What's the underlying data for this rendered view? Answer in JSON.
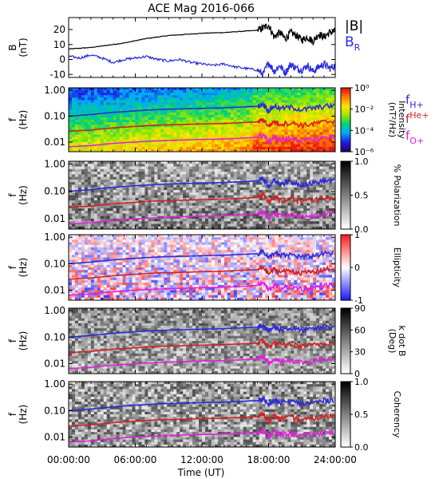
{
  "chart_data": {
    "type": "line",
    "title": "ACE Mag 2016-066",
    "xlabel": "Time (UT)",
    "x_tick_labels": [
      "00:00:00",
      "06:00:00",
      "12:00:00",
      "18:00:00",
      "24:00:00"
    ],
    "x_tick_hours": [
      0,
      6,
      12,
      18,
      24
    ],
    "x_range_hours": [
      0,
      24
    ],
    "panels": [
      {
        "id": "b",
        "type": "line",
        "ylabel": "B (nT)",
        "ylabel_parts": [
          "B",
          "(nT)"
        ],
        "ylim": [
          -12,
          28
        ],
        "y_ticks": [
          20,
          10,
          0,
          -10
        ],
        "y_tick_labels": [
          "20",
          "10",
          "0",
          "-10"
        ],
        "legend": [
          {
            "text": "|B|",
            "color": "#000000"
          },
          {
            "text": "B",
            "sub": "R",
            "color": "#2b2bdc"
          }
        ],
        "series": [
          {
            "name": "|B|",
            "color": "#000000",
            "x": [
              0,
              1,
              2,
              3,
              4,
              5,
              6,
              7,
              8,
              9,
              10,
              11,
              12,
              13,
              14,
              15,
              16,
              17,
              17.5,
              18,
              18.5,
              19,
              19.5,
              20,
              20.5,
              21,
              21.5,
              22,
              22.5,
              23,
              23.5,
              24
            ],
            "y": [
              7,
              7.5,
              8,
              9,
              10,
              11,
              12.5,
              14,
              15,
              16,
              16.5,
              17,
              17.5,
              17.8,
              18,
              18.5,
              19,
              19.5,
              21,
              23,
              15,
              18,
              14,
              18,
              16,
              13,
              15,
              12,
              17,
              15,
              18,
              19
            ]
          },
          {
            "name": "B_R",
            "color": "#2b2bdc",
            "x": [
              0,
              1,
              2,
              3,
              4,
              5,
              6,
              7,
              8,
              9,
              10,
              11,
              12,
              13,
              14,
              15,
              16,
              17,
              17.5,
              18,
              18.5,
              19,
              19.5,
              20,
              20.5,
              21,
              21.5,
              22,
              22.5,
              23,
              23.5,
              24
            ],
            "y": [
              2,
              1,
              3,
              1,
              -2,
              0,
              1,
              2,
              0,
              -1,
              0,
              -2,
              -3,
              -4,
              -3,
              -5,
              -6,
              -7,
              -10,
              -2,
              -8,
              -4,
              -9,
              -3,
              -6,
              -7,
              -4,
              -8,
              -5,
              -3,
              -6,
              -4
            ]
          }
        ]
      },
      {
        "id": "intensity",
        "type": "heatmap",
        "ylabel": "f (Hz)",
        "ylabel_parts": [
          "f",
          "(Hz)"
        ],
        "y_scale": "log",
        "y_ticks": [
          1.0,
          0.1,
          0.01
        ],
        "y_tick_labels": [
          "1.00",
          "0.10",
          "0.01"
        ],
        "colorbar": {
          "label": "Intensity (nT²/Hz)",
          "label_parts": [
            "Intensity",
            "(nT²/Hz)"
          ],
          "ticks": [
            0,
            -2,
            -4,
            -6
          ],
          "tick_labels": [
            "10⁰",
            "10⁻²",
            "10⁻⁴",
            "10⁻⁶"
          ],
          "colormap": "rainbow"
        },
        "overlay_legend": [
          {
            "text": "f",
            "sub": "H+",
            "color": "#2b2bdc"
          },
          {
            "text": "f",
            "sup": "He+",
            "color": "#d42020"
          },
          {
            "text": "f",
            "sub": "O+",
            "color": "#e020e0"
          }
        ]
      },
      {
        "id": "polarization",
        "type": "heatmap",
        "ylabel": "f (Hz)",
        "ylabel_parts": [
          "f",
          "(Hz)"
        ],
        "y_scale": "log",
        "y_ticks": [
          1.0,
          0.1,
          0.01
        ],
        "y_tick_labels": [
          "1.00",
          "0.10",
          "0.01"
        ],
        "colorbar": {
          "label": "% Polarization",
          "ticks": [
            1.0,
            0.5,
            0.0
          ],
          "tick_labels": [
            "1.0",
            "0.5",
            "0.0"
          ],
          "colormap": "gray-inverted"
        }
      },
      {
        "id": "ellipticity",
        "type": "heatmap",
        "ylabel": "f (Hz)",
        "ylabel_parts": [
          "f",
          "(Hz)"
        ],
        "y_scale": "log",
        "y_ticks": [
          1.0,
          0.1,
          0.01
        ],
        "y_tick_labels": [
          "1.00",
          "0.10",
          "0.01"
        ],
        "colorbar": {
          "label": "Ellipticity",
          "ticks": [
            1,
            0,
            -1
          ],
          "tick_labels": [
            "1",
            "0",
            "-1"
          ],
          "colormap": "blue-white-red"
        }
      },
      {
        "id": "kdotb",
        "type": "heatmap",
        "ylabel": "f (Hz)",
        "ylabel_parts": [
          "f",
          "(Hz)"
        ],
        "y_scale": "log",
        "y_ticks": [
          1.0,
          0.1,
          0.01
        ],
        "y_tick_labels": [
          "1.00",
          "0.10",
          "0.01"
        ],
        "colorbar": {
          "label": "k dot B (Deg)",
          "label_parts": [
            "k dot B",
            "(Deg)"
          ],
          "ticks": [
            90,
            60,
            30,
            0
          ],
          "tick_labels": [
            "90",
            "60",
            "30",
            "0"
          ],
          "colormap": "gray-inverted"
        }
      },
      {
        "id": "coherency",
        "type": "heatmap",
        "ylabel": "f (Hz)",
        "ylabel_parts": [
          "f",
          "(Hz)"
        ],
        "y_scale": "log",
        "y_ticks": [
          1.0,
          0.1,
          0.01
        ],
        "y_tick_labels": [
          "1.00",
          "0.10",
          "0.01"
        ],
        "colorbar": {
          "label": "Coherency",
          "ticks": [
            1.0,
            0.5,
            0.0
          ],
          "tick_labels": [
            "1.0",
            "0.5",
            "0.0"
          ],
          "colormap": "gray-inverted"
        }
      }
    ],
    "gyrofrequency_lines": [
      {
        "name": "f_H+",
        "color": "#2b2bdc",
        "x": [
          0,
          2,
          4,
          6,
          8,
          10,
          12,
          14,
          16,
          17,
          17.5,
          18,
          18.5,
          19,
          20,
          21,
          22,
          23,
          24
        ],
        "y": [
          0.1,
          0.115,
          0.14,
          0.16,
          0.18,
          0.19,
          0.2,
          0.21,
          0.23,
          0.24,
          0.3,
          0.16,
          0.25,
          0.2,
          0.22,
          0.18,
          0.2,
          0.24,
          0.26
        ]
      },
      {
        "name": "f_He+",
        "color": "#d42020",
        "x": [
          0,
          2,
          4,
          6,
          8,
          10,
          12,
          14,
          16,
          17,
          17.5,
          18,
          18.5,
          19,
          20,
          21,
          22,
          23,
          24
        ],
        "y": [
          0.026,
          0.029,
          0.035,
          0.04,
          0.045,
          0.047,
          0.05,
          0.052,
          0.057,
          0.06,
          0.075,
          0.04,
          0.062,
          0.05,
          0.055,
          0.045,
          0.05,
          0.06,
          0.065
        ]
      },
      {
        "name": "f_O+",
        "color": "#e020e0",
        "x": [
          0,
          2,
          4,
          6,
          8,
          10,
          12,
          14,
          16,
          17,
          17.5,
          18,
          18.5,
          19,
          20,
          21,
          22,
          23,
          24
        ],
        "y": [
          0.0065,
          0.0072,
          0.0088,
          0.01,
          0.011,
          0.0118,
          0.0125,
          0.013,
          0.0143,
          0.015,
          0.019,
          0.01,
          0.0155,
          0.0125,
          0.0138,
          0.0113,
          0.0125,
          0.015,
          0.016
        ]
      }
    ]
  }
}
